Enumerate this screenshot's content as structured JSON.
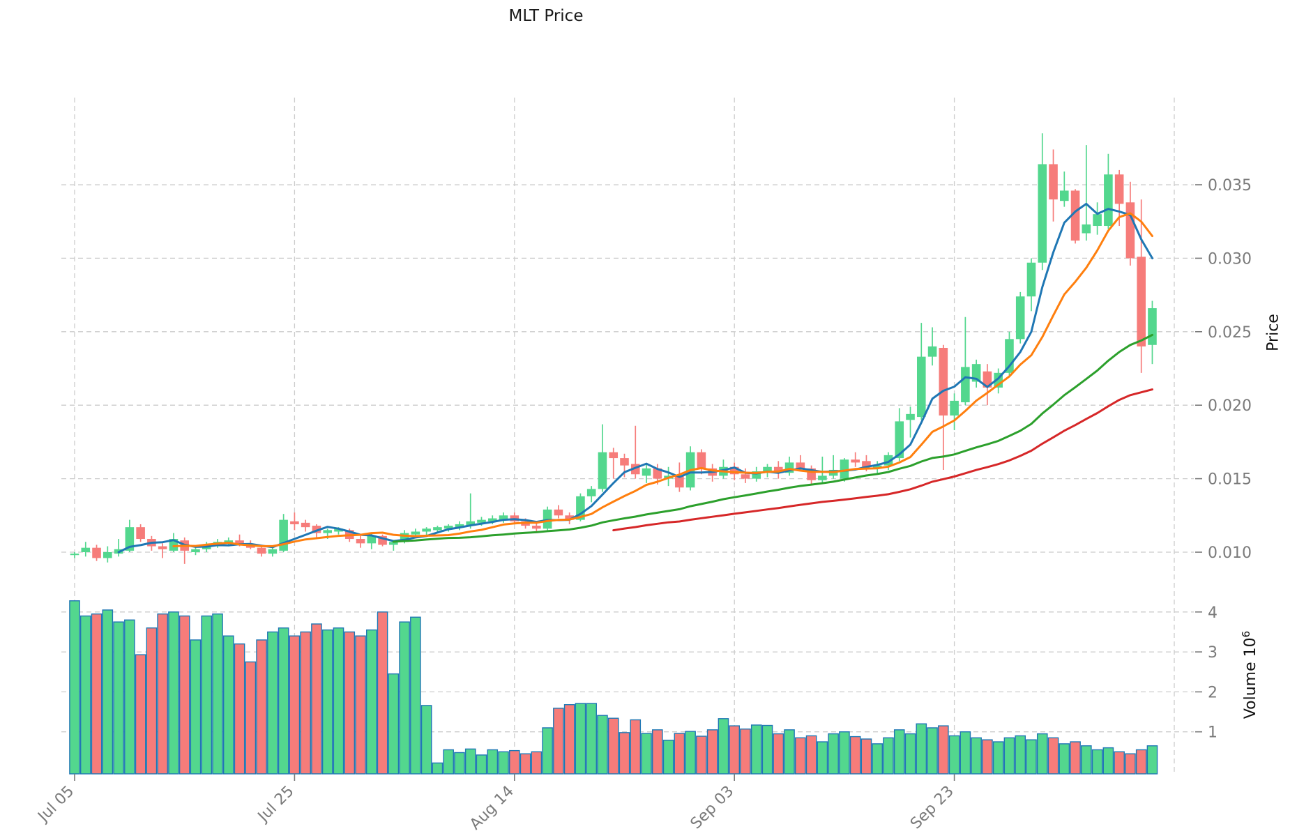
{
  "title": "MLT Price",
  "axes": {
    "price_label": "Price",
    "volume_label_text": "Volume  10",
    "volume_label_exp": "6",
    "price_tick_labels": [
      "0.035",
      "0.030",
      "0.025",
      "0.020",
      "0.015",
      "0.010"
    ],
    "volume_tick_labels": [
      "4",
      "3",
      "2",
      "1"
    ],
    "x_ticks": [
      {
        "label": "Jul 05",
        "index": 0
      },
      {
        "label": "Jul 25",
        "index": 20
      },
      {
        "label": "Aug 14",
        "index": 40
      },
      {
        "label": "Sep 03",
        "index": 60
      },
      {
        "label": "Sep 23",
        "index": 80
      }
    ],
    "extra_vgrid_index": 100,
    "grid": true
  },
  "colors": {
    "up": "#53d78e",
    "down": "#f67c7a",
    "volume_edge": "#1f77b4",
    "grid": "#cccccc",
    "tick_text": "#7a7a7a",
    "title_text": "#1a1a1a"
  },
  "moving_averages": [
    {
      "name": "MA5",
      "window": 5,
      "color": "#1f77b4"
    },
    {
      "name": "MA10",
      "window": 10,
      "color": "#ff7f0e"
    },
    {
      "name": "MA30",
      "window": 30,
      "color": "#2ca02c"
    },
    {
      "name": "MA50",
      "window": 50,
      "color": "#d62728"
    }
  ],
  "chart_data": {
    "type": "candlestick",
    "title": "MLT Price",
    "xlabel": "",
    "ylabel": "Price",
    "ylabel2": "Volume ×10⁶",
    "price_ylim": [
      0.0091,
      0.0405
    ],
    "volume_ylim": [
      0,
      5.1
    ],
    "x_tick_labels": [
      "Jul 05",
      "Jul 25",
      "Aug 14",
      "Sep 03",
      "Sep 23"
    ],
    "legend": "none",
    "columns": [
      "date",
      "open",
      "high",
      "low",
      "close",
      "volume_millions"
    ],
    "rows": [
      [
        "Jul 05",
        0.0098,
        0.01,
        0.0096,
        0.0099,
        4.28
      ],
      [
        "Jul 06",
        0.01,
        0.0107,
        0.0097,
        0.0103,
        3.9
      ],
      [
        "Jul 07",
        0.0103,
        0.0105,
        0.0094,
        0.0096,
        3.95
      ],
      [
        "Jul 08",
        0.0096,
        0.0104,
        0.0093,
        0.01,
        4.05
      ],
      [
        "Jul 09",
        0.0099,
        0.0109,
        0.0097,
        0.0102,
        3.75
      ],
      [
        "Jul 10",
        0.0101,
        0.0122,
        0.01,
        0.0117,
        3.8
      ],
      [
        "Jul 11",
        0.0117,
        0.0119,
        0.0107,
        0.0109,
        2.93
      ],
      [
        "Jul 12",
        0.0109,
        0.0111,
        0.0101,
        0.0104,
        3.6
      ],
      [
        "Jul 13",
        0.0104,
        0.0106,
        0.0096,
        0.0102,
        3.95
      ],
      [
        "Jul 14",
        0.0101,
        0.0113,
        0.01,
        0.0109,
        4.0
      ],
      [
        "Jul 15",
        0.0108,
        0.011,
        0.0092,
        0.0101,
        3.9
      ],
      [
        "Jul 16",
        0.01,
        0.0104,
        0.0098,
        0.0102,
        3.3
      ],
      [
        "Jul 17",
        0.0102,
        0.0107,
        0.01,
        0.0105,
        3.9
      ],
      [
        "Jul 18",
        0.0104,
        0.0109,
        0.0103,
        0.0107,
        3.95
      ],
      [
        "Jul 19",
        0.0106,
        0.011,
        0.0104,
        0.0108,
        3.4
      ],
      [
        "Jul 20",
        0.0108,
        0.0112,
        0.0104,
        0.0105,
        3.2
      ],
      [
        "Jul 21",
        0.0105,
        0.0108,
        0.0102,
        0.0103,
        2.75
      ],
      [
        "Jul 22",
        0.0103,
        0.0105,
        0.0097,
        0.0099,
        3.3
      ],
      [
        "Jul 23",
        0.0099,
        0.0104,
        0.0097,
        0.0102,
        3.5
      ],
      [
        "Jul 24",
        0.0101,
        0.0126,
        0.01,
        0.0122,
        3.6
      ],
      [
        "Jul 25",
        0.0121,
        0.0127,
        0.0115,
        0.0119,
        3.4
      ],
      [
        "Jul 26",
        0.012,
        0.0122,
        0.0114,
        0.0117,
        3.5
      ],
      [
        "Jul 27",
        0.0118,
        0.0119,
        0.011,
        0.0113,
        3.7
      ],
      [
        "Jul 28",
        0.0113,
        0.0116,
        0.0109,
        0.0115,
        3.55
      ],
      [
        "Jul 29",
        0.0114,
        0.0117,
        0.0112,
        0.0116,
        3.6
      ],
      [
        "Jul 30",
        0.0115,
        0.0116,
        0.0107,
        0.0109,
        3.5
      ],
      [
        "Jul 31",
        0.0109,
        0.0111,
        0.0103,
        0.0106,
        3.4
      ],
      [
        "Aug 01",
        0.0106,
        0.0113,
        0.0102,
        0.0111,
        3.55
      ],
      [
        "Aug 02",
        0.0111,
        0.0112,
        0.0104,
        0.0105,
        4.0
      ],
      [
        "Aug 03",
        0.0105,
        0.0108,
        0.0101,
        0.0107,
        2.45
      ],
      [
        "Aug 04",
        0.0107,
        0.0115,
        0.0106,
        0.0113,
        3.75
      ],
      [
        "Aug 05",
        0.0112,
        0.0116,
        0.011,
        0.0114,
        3.87
      ],
      [
        "Aug 06",
        0.0114,
        0.0117,
        0.0111,
        0.0116,
        1.66
      ],
      [
        "Aug 07",
        0.0115,
        0.0118,
        0.0113,
        0.0117,
        0.22
      ],
      [
        "Aug 08",
        0.0116,
        0.0119,
        0.0114,
        0.0118,
        0.55
      ],
      [
        "Aug 09",
        0.0117,
        0.0121,
        0.0115,
        0.0119,
        0.48
      ],
      [
        "Aug 10",
        0.0118,
        0.014,
        0.0116,
        0.0121,
        0.57
      ],
      [
        "Aug 11",
        0.012,
        0.0124,
        0.0118,
        0.0122,
        0.42
      ],
      [
        "Aug 12",
        0.0121,
        0.0125,
        0.0119,
        0.0123,
        0.55
      ],
      [
        "Aug 13",
        0.0122,
        0.0127,
        0.012,
        0.0125,
        0.5
      ],
      [
        "Aug 14",
        0.0125,
        0.0127,
        0.0119,
        0.0121,
        0.53
      ],
      [
        "Aug 15",
        0.0121,
        0.0123,
        0.0116,
        0.0118,
        0.45
      ],
      [
        "Aug 16",
        0.0118,
        0.012,
        0.0114,
        0.0116,
        0.5
      ],
      [
        "Aug 17",
        0.0116,
        0.0131,
        0.0115,
        0.0129,
        1.1
      ],
      [
        "Aug 18",
        0.0129,
        0.0132,
        0.0123,
        0.0125,
        1.59
      ],
      [
        "Aug 19",
        0.0125,
        0.0127,
        0.0119,
        0.0122,
        1.68
      ],
      [
        "Aug 20",
        0.0122,
        0.014,
        0.0121,
        0.0138,
        1.71
      ],
      [
        "Aug 21",
        0.0138,
        0.0145,
        0.0134,
        0.0143,
        1.71
      ],
      [
        "Aug 22",
        0.0143,
        0.0187,
        0.0141,
        0.0168,
        1.41
      ],
      [
        "Aug 23",
        0.0168,
        0.0171,
        0.015,
        0.0164,
        1.34
      ],
      [
        "Aug 24",
        0.0164,
        0.0167,
        0.0151,
        0.0159,
        0.98
      ],
      [
        "Aug 25",
        0.016,
        0.0186,
        0.015,
        0.0153,
        1.3
      ],
      [
        "Aug 26",
        0.0152,
        0.016,
        0.0147,
        0.0157,
        0.96
      ],
      [
        "Aug 27",
        0.0157,
        0.016,
        0.0146,
        0.015,
        1.05
      ],
      [
        "Aug 28",
        0.015,
        0.0158,
        0.0145,
        0.0152,
        0.79
      ],
      [
        "Aug 29",
        0.0152,
        0.0161,
        0.0141,
        0.0144,
        0.96
      ],
      [
        "Aug 30",
        0.0144,
        0.0172,
        0.0142,
        0.0168,
        1.01
      ],
      [
        "Aug 31",
        0.0168,
        0.017,
        0.0153,
        0.0157,
        0.89
      ],
      [
        "Sep 01",
        0.0157,
        0.016,
        0.0148,
        0.0152,
        1.05
      ],
      [
        "Sep 02",
        0.0152,
        0.0163,
        0.015,
        0.0158,
        1.33
      ],
      [
        "Sep 03",
        0.0158,
        0.0161,
        0.0149,
        0.0153,
        1.15
      ],
      [
        "Sep 04",
        0.0153,
        0.0157,
        0.0147,
        0.015,
        1.07
      ],
      [
        "Sep 05",
        0.015,
        0.0158,
        0.0148,
        0.0155,
        1.17
      ],
      [
        "Sep 06",
        0.0155,
        0.016,
        0.0151,
        0.0158,
        1.16
      ],
      [
        "Sep 07",
        0.0158,
        0.0162,
        0.015,
        0.0154,
        0.95
      ],
      [
        "Sep 08",
        0.0154,
        0.0165,
        0.0152,
        0.0161,
        1.05
      ],
      [
        "Sep 09",
        0.0161,
        0.0166,
        0.0155,
        0.0157,
        0.85
      ],
      [
        "Sep 10",
        0.0157,
        0.0159,
        0.0146,
        0.0149,
        0.9
      ],
      [
        "Sep 11",
        0.0149,
        0.0165,
        0.0147,
        0.0152,
        0.75
      ],
      [
        "Sep 12",
        0.0152,
        0.0166,
        0.015,
        0.0156,
        0.95
      ],
      [
        "Sep 13",
        0.015,
        0.0164,
        0.0148,
        0.0163,
        1.0
      ],
      [
        "Sep 14",
        0.0163,
        0.0168,
        0.0158,
        0.0161,
        0.88
      ],
      [
        "Sep 15",
        0.0162,
        0.0166,
        0.0155,
        0.0158,
        0.82
      ],
      [
        "Sep 16",
        0.0157,
        0.0162,
        0.0153,
        0.0159,
        0.7
      ],
      [
        "Sep 17",
        0.0159,
        0.0168,
        0.0156,
        0.0166,
        0.85
      ],
      [
        "Sep 18",
        0.0164,
        0.0198,
        0.0162,
        0.0189,
        1.05
      ],
      [
        "Sep 19",
        0.019,
        0.0199,
        0.0178,
        0.0194,
        0.95
      ],
      [
        "Sep 20",
        0.0192,
        0.0256,
        0.019,
        0.0233,
        1.2
      ],
      [
        "Sep 21",
        0.0233,
        0.0253,
        0.0227,
        0.024,
        1.1
      ],
      [
        "Sep 22",
        0.0239,
        0.0241,
        0.0156,
        0.0193,
        1.15
      ],
      [
        "Sep 23",
        0.0193,
        0.0208,
        0.0183,
        0.0203,
        0.9
      ],
      [
        "Sep 24",
        0.0202,
        0.026,
        0.02,
        0.0226,
        1.0
      ],
      [
        "Sep 25",
        0.0216,
        0.0231,
        0.0212,
        0.0228,
        0.85
      ],
      [
        "Sep 26",
        0.0223,
        0.0228,
        0.02,
        0.0212,
        0.8
      ],
      [
        "Sep 27",
        0.0212,
        0.0225,
        0.0208,
        0.0222,
        0.75
      ],
      [
        "Sep 28",
        0.0222,
        0.025,
        0.022,
        0.0245,
        0.85
      ],
      [
        "Sep 29",
        0.0245,
        0.0277,
        0.0242,
        0.0274,
        0.9
      ],
      [
        "Sep 30",
        0.0274,
        0.03,
        0.0264,
        0.0297,
        0.8
      ],
      [
        "Oct 01",
        0.0297,
        0.0385,
        0.0292,
        0.0364,
        0.95
      ],
      [
        "Oct 02",
        0.0364,
        0.0374,
        0.0325,
        0.034,
        0.85
      ],
      [
        "Oct 03",
        0.0339,
        0.0359,
        0.0335,
        0.0346,
        0.7
      ],
      [
        "Oct 04",
        0.0346,
        0.0347,
        0.031,
        0.0312,
        0.75
      ],
      [
        "Oct 05",
        0.0317,
        0.0377,
        0.0312,
        0.0323,
        0.65
      ],
      [
        "Oct 06",
        0.0322,
        0.0338,
        0.0316,
        0.033,
        0.55
      ],
      [
        "Oct 07",
        0.0322,
        0.0371,
        0.032,
        0.0357,
        0.6
      ],
      [
        "Oct 08",
        0.0357,
        0.036,
        0.0322,
        0.0337,
        0.5
      ],
      [
        "Oct 09",
        0.0338,
        0.0352,
        0.0295,
        0.03,
        0.45
      ],
      [
        "Oct 10",
        0.0301,
        0.034,
        0.0222,
        0.024,
        0.55
      ],
      [
        "Oct 11",
        0.0241,
        0.0271,
        0.0228,
        0.0266,
        0.65
      ]
    ]
  }
}
